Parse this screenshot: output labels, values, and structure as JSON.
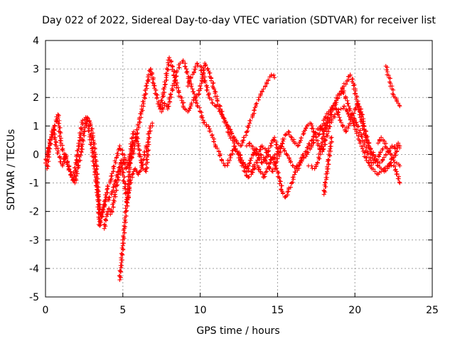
{
  "chart_data": {
    "type": "scatter",
    "title": "Day 022 of 2022, Sidereal Day-to-day VTEC variation (SDTVAR) for receiver list",
    "xlabel": "GPS time / hours",
    "ylabel": "SDTVAR / TECUs",
    "xlim": [
      0,
      25
    ],
    "ylim": [
      -5,
      4
    ],
    "grid": true,
    "marker": "+",
    "color": "#ff0000",
    "x_ticks": [
      0,
      5,
      10,
      15,
      20,
      25
    ],
    "x_tick_labels": [
      "0",
      "5",
      "10",
      "15",
      "20",
      "25"
    ],
    "y_ticks": [
      -5,
      -4,
      -3,
      -2,
      -1,
      0,
      1,
      2,
      3,
      4
    ],
    "y_tick_labels": [
      "-5",
      "-4",
      "-3",
      "-2",
      "-1",
      "0",
      "1",
      "2",
      "3",
      "4"
    ],
    "series": [
      {
        "name": "s1",
        "x": [
          0.0,
          0.2,
          0.4,
          0.6,
          0.8,
          1.0,
          1.2,
          1.4,
          1.6,
          1.8,
          2.0,
          2.2,
          2.4,
          2.6,
          2.8,
          3.0,
          3.2,
          3.4,
          3.6,
          3.8,
          4.0,
          4.2,
          4.4,
          4.6,
          4.8,
          5.0,
          5.2,
          5.4,
          5.6,
          5.8,
          6.0,
          6.2,
          6.4,
          6.6,
          6.8,
          7.0,
          7.2,
          7.4,
          7.6,
          7.8,
          8.0,
          8.2,
          8.4,
          8.6,
          8.8,
          9.0,
          9.2,
          9.4,
          9.6,
          9.8,
          10.0,
          10.2,
          10.4,
          10.6,
          10.8,
          11.0,
          11.2,
          11.4,
          11.6,
          11.8,
          12.0,
          12.2,
          12.4,
          12.6,
          12.8,
          13.0,
          13.2,
          13.4,
          13.6,
          13.8,
          14.0,
          14.2,
          14.4,
          14.6,
          14.8,
          15.0
        ],
        "y": [
          -0.3,
          0.2,
          0.6,
          1.0,
          1.4,
          0.4,
          0.0,
          -0.3,
          -0.6,
          -0.9,
          -0.2,
          0.5,
          1.2,
          1.3,
          0.9,
          0.2,
          -0.6,
          -1.5,
          -2.2,
          -1.8,
          -1.2,
          -0.9,
          -0.5,
          -0.1,
          0.3,
          0.0,
          -0.2,
          -0.4,
          -0.1,
          0.5,
          1.0,
          1.5,
          2.0,
          2.6,
          3.0,
          2.5,
          2.0,
          1.6,
          2.1,
          2.7,
          3.4,
          3.1,
          2.6,
          2.2,
          1.9,
          1.6,
          1.5,
          1.7,
          2.0,
          1.8,
          1.5,
          1.2,
          1.0,
          0.9,
          0.6,
          0.3,
          0.1,
          -0.2,
          -0.4,
          -0.3,
          0.0,
          0.2,
          0.1,
          -0.2,
          -0.4,
          -0.5,
          -0.3,
          0.0,
          0.2,
          -0.1,
          -0.3,
          -0.2,
          0.1,
          0.4,
          0.6,
          0.2
        ]
      },
      {
        "name": "s2",
        "x": [
          0.1,
          0.3,
          0.5,
          0.7,
          0.9,
          1.1,
          1.3,
          1.5,
          1.7,
          1.9,
          2.1,
          2.3,
          2.5,
          2.7,
          2.9,
          3.1,
          3.3,
          3.5,
          3.7,
          3.9,
          4.1,
          4.3,
          4.5,
          4.7,
          4.9,
          5.1,
          5.3,
          5.5,
          5.7,
          5.9,
          6.1,
          6.3,
          6.5,
          6.7,
          6.9
        ],
        "y": [
          -0.5,
          0.5,
          0.9,
          0.3,
          -0.1,
          -0.4,
          0.0,
          -0.5,
          -0.8,
          -1.0,
          -0.4,
          0.1,
          0.8,
          1.3,
          1.1,
          0.5,
          -0.5,
          -2.5,
          -2.0,
          -1.5,
          -1.6,
          -1.3,
          -1.0,
          -0.6,
          -0.2,
          -1.0,
          -1.7,
          0.2,
          0.8,
          0.6,
          0.0,
          -0.5,
          -0.6,
          0.8,
          1.1
        ]
      },
      {
        "name": "s3",
        "x": [
          4.8,
          4.85,
          4.9,
          4.95,
          5.0,
          5.05,
          5.1,
          5.15,
          5.2,
          5.3,
          5.4,
          5.5,
          5.6,
          5.7,
          5.8,
          5.9,
          6.0,
          6.1,
          6.2,
          6.3,
          6.4,
          6.5
        ],
        "y": [
          -4.4,
          -4.1,
          -3.8,
          -3.5,
          -3.2,
          -2.9,
          -2.6,
          -2.3,
          -2.0,
          -1.6,
          -1.2,
          -0.9,
          -0.7,
          -0.6,
          -0.5,
          -0.6,
          -0.7,
          -0.6,
          -0.4,
          -0.2,
          0.0,
          0.3
        ]
      },
      {
        "name": "s4",
        "x": [
          3.8,
          3.9,
          4.0,
          4.1,
          4.2,
          4.3,
          4.4,
          4.5,
          4.6,
          4.7,
          4.8,
          4.9,
          5.0,
          5.1,
          5.2,
          5.3,
          5.4,
          5.5,
          5.6,
          5.7
        ],
        "y": [
          -2.6,
          -2.3,
          -2.0,
          -1.9,
          -2.1,
          -2.0,
          -1.7,
          -1.4,
          -1.1,
          -0.8,
          -0.6,
          -0.4,
          -0.2,
          -0.3,
          -0.5,
          -0.4,
          -0.2,
          0.0,
          0.2,
          0.4
        ]
      },
      {
        "name": "s5",
        "x": [
          7.5,
          7.7,
          7.9,
          8.1,
          8.3,
          8.5,
          8.7,
          8.9,
          9.1,
          9.3,
          9.5,
          9.7,
          9.9,
          10.1,
          10.3,
          10.5,
          10.7,
          10.9,
          11.1,
          11.3,
          11.5,
          11.7,
          11.9,
          12.1,
          12.3,
          12.5,
          12.7,
          12.9,
          13.1,
          13.3,
          13.5,
          13.7,
          13.9,
          14.1,
          14.3,
          14.5,
          14.7,
          14.9,
          15.1,
          15.3,
          15.5,
          15.7,
          15.9,
          16.1,
          16.3,
          16.5,
          16.7,
          16.9,
          17.1,
          17.3,
          17.5,
          17.7,
          17.9,
          18.1,
          18.3,
          18.5,
          18.7,
          18.9,
          19.1,
          19.3,
          19.5,
          19.7,
          19.9,
          20.1,
          20.3,
          20.5,
          20.7,
          20.9,
          21.1,
          21.3,
          21.5,
          21.7,
          21.9,
          22.1,
          22.3,
          22.5,
          22.7,
          22.9
        ],
        "y": [
          1.5,
          1.8,
          1.6,
          2.1,
          2.5,
          2.9,
          3.2,
          3.3,
          3.0,
          2.6,
          2.3,
          2.0,
          2.1,
          2.6,
          3.2,
          3.0,
          2.7,
          2.3,
          1.9,
          1.6,
          1.3,
          1.0,
          0.7,
          0.5,
          0.2,
          0.0,
          -0.2,
          -0.4,
          -0.5,
          -0.6,
          -0.4,
          -0.2,
          0.0,
          -0.1,
          -0.3,
          -0.5,
          -0.6,
          -0.3,
          0.0,
          0.4,
          0.7,
          0.8,
          0.6,
          0.4,
          0.3,
          0.5,
          0.8,
          1.0,
          1.1,
          0.9,
          0.6,
          0.7,
          1.0,
          1.3,
          1.5,
          1.6,
          1.8,
          2.0,
          2.2,
          2.4,
          2.6,
          2.8,
          2.5,
          2.0,
          1.5,
          1.0,
          0.6,
          0.3,
          0.0,
          -0.2,
          -0.4,
          -0.5,
          -0.6,
          -0.5,
          -0.3,
          -0.1,
          0.1,
          0.3
        ]
      },
      {
        "name": "s6",
        "x": [
          9.2,
          9.4,
          9.6,
          9.8,
          10.0,
          10.2,
          10.4,
          10.6,
          10.8,
          11.0,
          11.2,
          11.4,
          11.6,
          11.8,
          12.0,
          12.2,
          12.4,
          12.6,
          12.8,
          13.0,
          13.2,
          13.4,
          13.6,
          13.8,
          14.0,
          14.2,
          14.4,
          14.6,
          14.8
        ],
        "y": [
          2.4,
          2.7,
          2.9,
          3.2,
          3.1,
          2.8,
          2.4,
          2.0,
          1.8,
          1.7,
          1.6,
          1.4,
          1.2,
          1.0,
          0.8,
          0.6,
          0.4,
          0.3,
          0.5,
          0.8,
          1.1,
          1.4,
          1.7,
          2.0,
          2.2,
          2.4,
          2.6,
          2.8,
          2.7
        ]
      },
      {
        "name": "s7",
        "x": [
          12.5,
          12.7,
          12.9,
          13.1,
          13.3,
          13.5,
          13.7,
          13.9,
          14.1,
          14.3,
          14.5,
          14.7,
          14.9,
          15.1,
          15.3,
          15.5,
          15.7,
          15.9,
          16.1,
          16.3,
          16.5,
          16.7,
          16.9,
          17.1,
          17.3,
          17.5,
          17.7,
          17.9,
          18.1,
          18.3,
          18.5,
          18.7,
          18.9,
          19.1,
          19.3,
          19.5,
          19.7,
          19.9,
          20.1,
          20.3,
          20.5,
          20.7,
          20.9,
          21.1,
          21.3,
          21.5,
          21.7,
          21.9,
          22.1,
          22.3,
          22.5,
          22.7,
          22.9
        ],
        "y": [
          0.0,
          -0.3,
          -0.6,
          -0.8,
          -0.7,
          -0.5,
          -0.4,
          -0.6,
          -0.8,
          -0.6,
          -0.3,
          -0.1,
          -0.4,
          -0.8,
          -1.3,
          -1.5,
          -1.3,
          -1.0,
          -0.7,
          -0.5,
          -0.3,
          -0.1,
          0.0,
          0.2,
          0.4,
          0.5,
          0.3,
          0.1,
          0.5,
          0.9,
          1.2,
          1.4,
          1.5,
          1.6,
          1.7,
          1.5,
          1.3,
          1.1,
          0.8,
          0.5,
          0.2,
          -0.1,
          -0.3,
          -0.5,
          -0.6,
          -0.7,
          -0.6,
          -0.5,
          -0.4,
          -0.3,
          -0.4,
          -0.6,
          -1.0
        ]
      },
      {
        "name": "s8",
        "x": [
          13.0,
          13.2,
          13.4,
          13.6,
          13.8,
          14.0,
          14.2,
          14.4,
          14.6,
          14.8,
          15.0,
          15.2,
          15.4,
          15.6,
          15.8,
          16.0,
          16.2,
          16.4,
          16.6,
          16.8,
          17.0,
          17.2,
          17.4,
          17.6,
          17.8,
          18.0,
          18.2,
          18.4,
          18.6,
          18.8,
          19.0,
          19.2,
          19.4,
          19.6,
          19.8,
          20.0,
          20.2,
          20.4,
          20.6,
          20.8,
          21.0,
          21.2,
          21.4,
          21.6,
          21.8
        ],
        "y": [
          0.3,
          0.4,
          0.2,
          0.0,
          0.1,
          0.3,
          0.2,
          0.0,
          -0.2,
          -0.1,
          0.1,
          0.3,
          0.2,
          0.0,
          -0.2,
          -0.4,
          -0.5,
          -0.3,
          -0.1,
          0.1,
          0.3,
          0.5,
          0.7,
          0.9,
          1.0,
          0.8,
          1.0,
          1.3,
          1.6,
          1.9,
          2.1,
          2.3,
          2.0,
          1.7,
          1.4,
          1.2,
          1.0,
          0.7,
          0.4,
          0.1,
          -0.2,
          -0.3,
          -0.2,
          0.0,
          0.2
        ]
      },
      {
        "name": "s9",
        "x": [
          17.0,
          17.2,
          17.4,
          17.6,
          17.8,
          18.0,
          18.2,
          18.4,
          18.6,
          18.8,
          19.0,
          19.2,
          19.4,
          19.6,
          19.8,
          20.0,
          20.2,
          20.4,
          20.6,
          20.8,
          21.0,
          21.2,
          21.4,
          21.6,
          21.8,
          22.0,
          22.2,
          22.4,
          22.6,
          22.8
        ],
        "y": [
          -0.4,
          -0.4,
          -0.5,
          -0.3,
          0.2,
          0.8,
          1.2,
          1.5,
          1.7,
          1.6,
          1.3,
          1.0,
          0.8,
          1.0,
          1.3,
          1.6,
          1.8,
          1.5,
          1.0,
          0.5,
          0.2,
          0.0,
          -0.2,
          -0.3,
          -0.2,
          0.0,
          0.1,
          0.3,
          0.2,
          0.4
        ]
      },
      {
        "name": "s10",
        "x": [
          22.0,
          22.1,
          22.2,
          22.3,
          22.4,
          22.5,
          22.6,
          22.7,
          22.8,
          22.9
        ],
        "y": [
          3.1,
          2.9,
          2.7,
          2.5,
          2.3,
          2.1,
          2.0,
          1.9,
          1.8,
          1.7
        ]
      },
      {
        "name": "s11",
        "x": [
          21.5,
          21.7,
          21.9,
          22.1,
          22.3,
          22.5,
          22.7,
          22.9
        ],
        "y": [
          0.4,
          0.6,
          0.4,
          0.2,
          0.0,
          -0.2,
          -0.3,
          -0.4
        ]
      },
      {
        "name": "s12",
        "x": [
          18.0,
          18.1,
          18.2,
          18.3,
          18.4,
          18.5
        ],
        "y": [
          -1.4,
          -1.0,
          -0.6,
          -0.2,
          0.2,
          0.6
        ]
      }
    ]
  }
}
